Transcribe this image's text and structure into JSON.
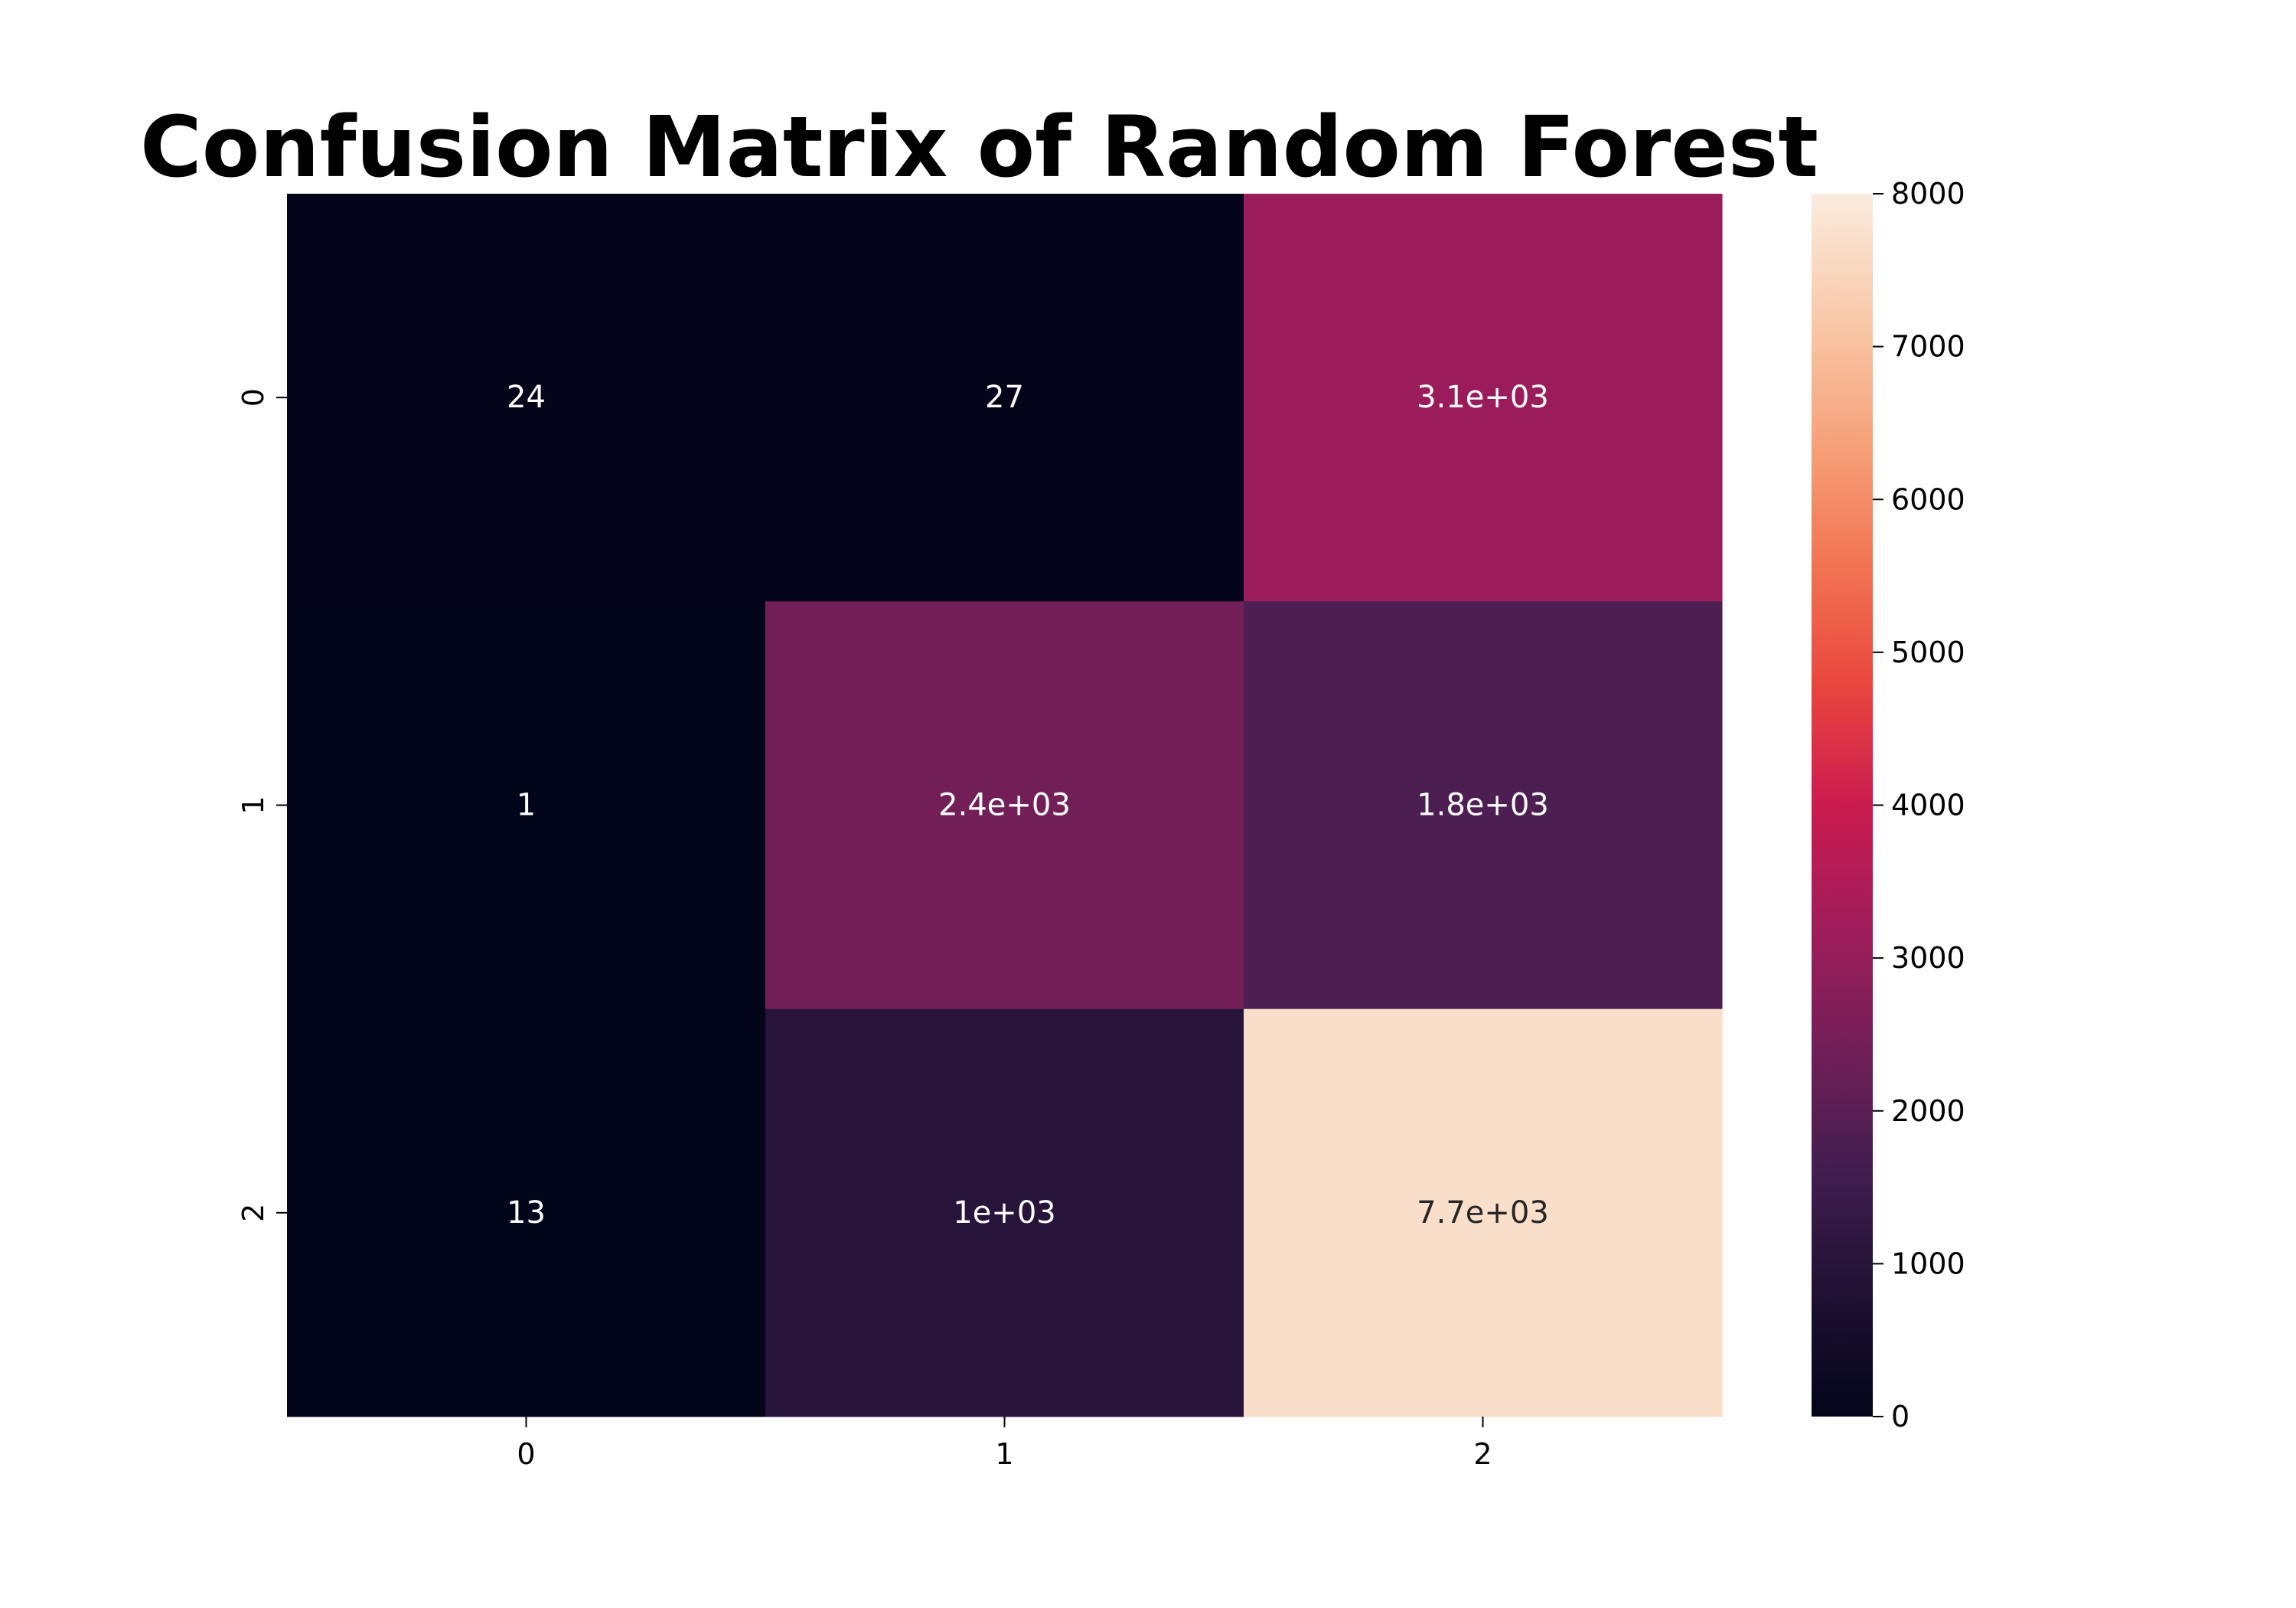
{
  "chart_data": {
    "type": "heatmap",
    "title": "Confusion Matrix of Random Forest",
    "x_tick_labels": [
      "0",
      "1",
      "2"
    ],
    "y_tick_labels": [
      "0",
      "1",
      "2"
    ],
    "values": [
      [
        24,
        27,
        3100
      ],
      [
        1,
        2400,
        1800
      ],
      [
        13,
        1000,
        7700
      ]
    ],
    "annotations": [
      [
        "24",
        "27",
        "3.1e+03"
      ],
      [
        "1",
        "2.4e+03",
        "1.8e+03"
      ],
      [
        "13",
        "1e+03",
        "7.7e+03"
      ]
    ],
    "colorbar": {
      "min": 0,
      "max": 8000,
      "ticks": [
        0,
        1000,
        2000,
        3000,
        4000,
        5000,
        6000,
        7000,
        8000
      ],
      "tick_labels": [
        "0",
        "1000",
        "2000",
        "3000",
        "4000",
        "5000",
        "6000",
        "7000",
        "8000"
      ]
    },
    "colormap": "rocket",
    "xlabel": "",
    "ylabel": "",
    "grid": false
  }
}
